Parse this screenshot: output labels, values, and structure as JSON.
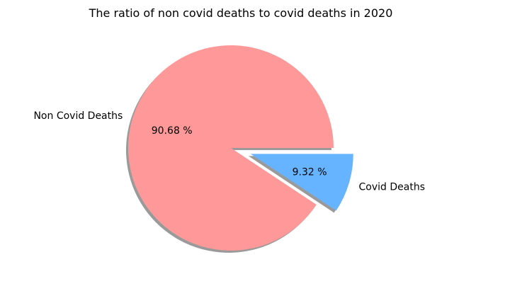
{
  "chart_data": {
    "type": "pie",
    "title": "The ratio of non covid deaths to covid deaths in 2020",
    "slices": [
      {
        "label": "Non Covid Deaths",
        "value": 90.68,
        "pct_label": "90.68 %",
        "color": "#ff9999",
        "explode": false
      },
      {
        "label": "Covid Deaths",
        "value": 9.32,
        "pct_label": "9.32 %",
        "color": "#66b3ff",
        "explode": true
      }
    ],
    "shadow": true,
    "start_angle_deg": 0
  }
}
